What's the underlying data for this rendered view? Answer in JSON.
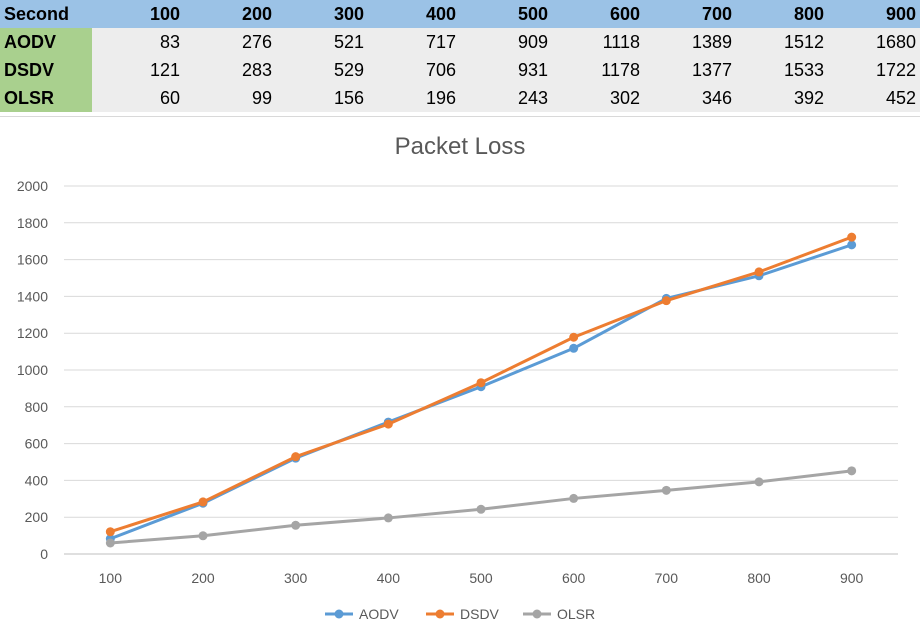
{
  "table": {
    "header": [
      "Second",
      "100",
      "200",
      "300",
      "400",
      "500",
      "600",
      "700",
      "800",
      "900"
    ],
    "rows": [
      {
        "label": "AODV",
        "values": [
          "83",
          "276",
          "521",
          "717",
          "909",
          "1118",
          "1389",
          "1512",
          "1680"
        ]
      },
      {
        "label": "DSDV",
        "values": [
          "121",
          "283",
          "529",
          "706",
          "931",
          "1178",
          "1377",
          "1533",
          "1722"
        ]
      },
      {
        "label": "OLSR",
        "values": [
          "60",
          "99",
          "156",
          "196",
          "243",
          "302",
          "346",
          "392",
          "452"
        ]
      }
    ]
  },
  "chart_data": {
    "type": "line",
    "title": "Packet Loss",
    "categories": [
      "100",
      "200",
      "300",
      "400",
      "500",
      "600",
      "700",
      "800",
      "900"
    ],
    "series": [
      {
        "name": "AODV",
        "color": "#5b9bd5",
        "values": [
          83,
          276,
          521,
          717,
          909,
          1118,
          1389,
          1512,
          1680
        ]
      },
      {
        "name": "DSDV",
        "color": "#ed7d31",
        "values": [
          121,
          283,
          529,
          706,
          931,
          1178,
          1377,
          1533,
          1722
        ]
      },
      {
        "name": "OLSR",
        "color": "#a5a5a5",
        "values": [
          60,
          99,
          156,
          196,
          243,
          302,
          346,
          392,
          452
        ]
      }
    ],
    "yticks": [
      "0",
      "200",
      "400",
      "600",
      "800",
      "1000",
      "1200",
      "1400",
      "1600",
      "1800",
      "2000"
    ],
    "ylim": [
      0,
      2000
    ],
    "xlabel": "",
    "ylabel": "",
    "grid": true,
    "legend": "bottom"
  }
}
